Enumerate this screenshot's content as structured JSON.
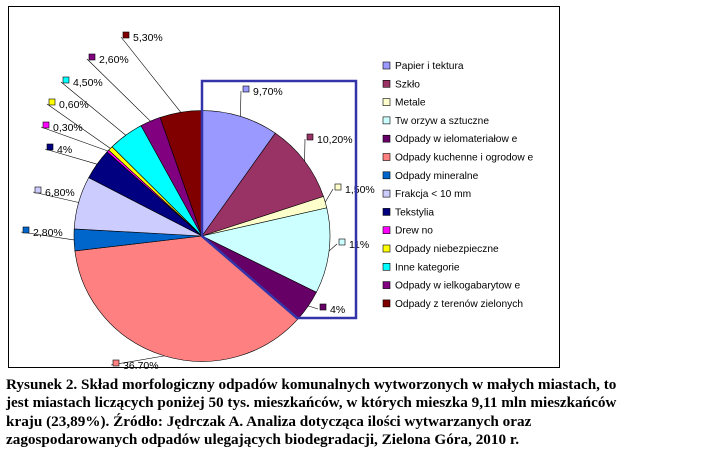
{
  "chart_data": {
    "type": "pie",
    "title": "",
    "series": [
      {
        "name": "Papier i tektura",
        "value": 9.7,
        "label": "9,70%",
        "color": "#9999ff"
      },
      {
        "name": "Szkło",
        "value": 10.2,
        "label": "10,20%",
        "color": "#993366"
      },
      {
        "name": "Metale",
        "value": 1.5,
        "label": "1,50%",
        "color": "#ffffcc"
      },
      {
        "name": "Tw orzyw a sztuczne",
        "value": 11,
        "label": "11%",
        "color": "#ccffff"
      },
      {
        "name": "Odpady w ielomateriałow e",
        "value": 4,
        "label": "4%",
        "color": "#660066"
      },
      {
        "name": "Odpady kuchenne i ogrodow e",
        "value": 36.7,
        "label": "36,70%",
        "color": "#ff8080"
      },
      {
        "name": "Odpady mineralne",
        "value": 2.8,
        "label": "2,80%",
        "color": "#0066cc"
      },
      {
        "name": "Frakcja < 10 mm",
        "value": 6.8,
        "label": "6,80%",
        "color": "#ccccff"
      },
      {
        "name": "Tekstylia",
        "value": 4,
        "label": "4%",
        "color": "#000080"
      },
      {
        "name": "Drew no",
        "value": 0.3,
        "label": "0,30%",
        "color": "#ff00ff"
      },
      {
        "name": "Odpady niebezpieczne",
        "value": 0.6,
        "label": "0,60%",
        "color": "#ffff00"
      },
      {
        "name": "Inne kategorie",
        "value": 4.5,
        "label": "4,50%",
        "color": "#00ffff"
      },
      {
        "name": "Odpady w ielkogabarytow e",
        "value": 2.6,
        "label": "2,60%",
        "color": "#800080"
      },
      {
        "name": "Odpady z terenów zielonych",
        "value": 5.3,
        "label": "5,30%",
        "color": "#800000"
      }
    ],
    "legend_position": "right",
    "highlight_color": "#3333aa"
  },
  "caption": {
    "lines": [
      "Rysunek 2. Skład morfologiczny odpadów komunalnych wytworzonych w małych miastach, to",
      "jest miastach liczących poniżej 50 tys. mieszkańców, w których mieszka 9,11 mln mieszkańców",
      "kraju (23,89%). Źródło: Jędrczak A. Analiza dotycząca ilości wytwarzanych oraz",
      "zagospodarowanych odpadów ulegających  biodegradacji, Zielona Góra, 2010 r."
    ]
  }
}
